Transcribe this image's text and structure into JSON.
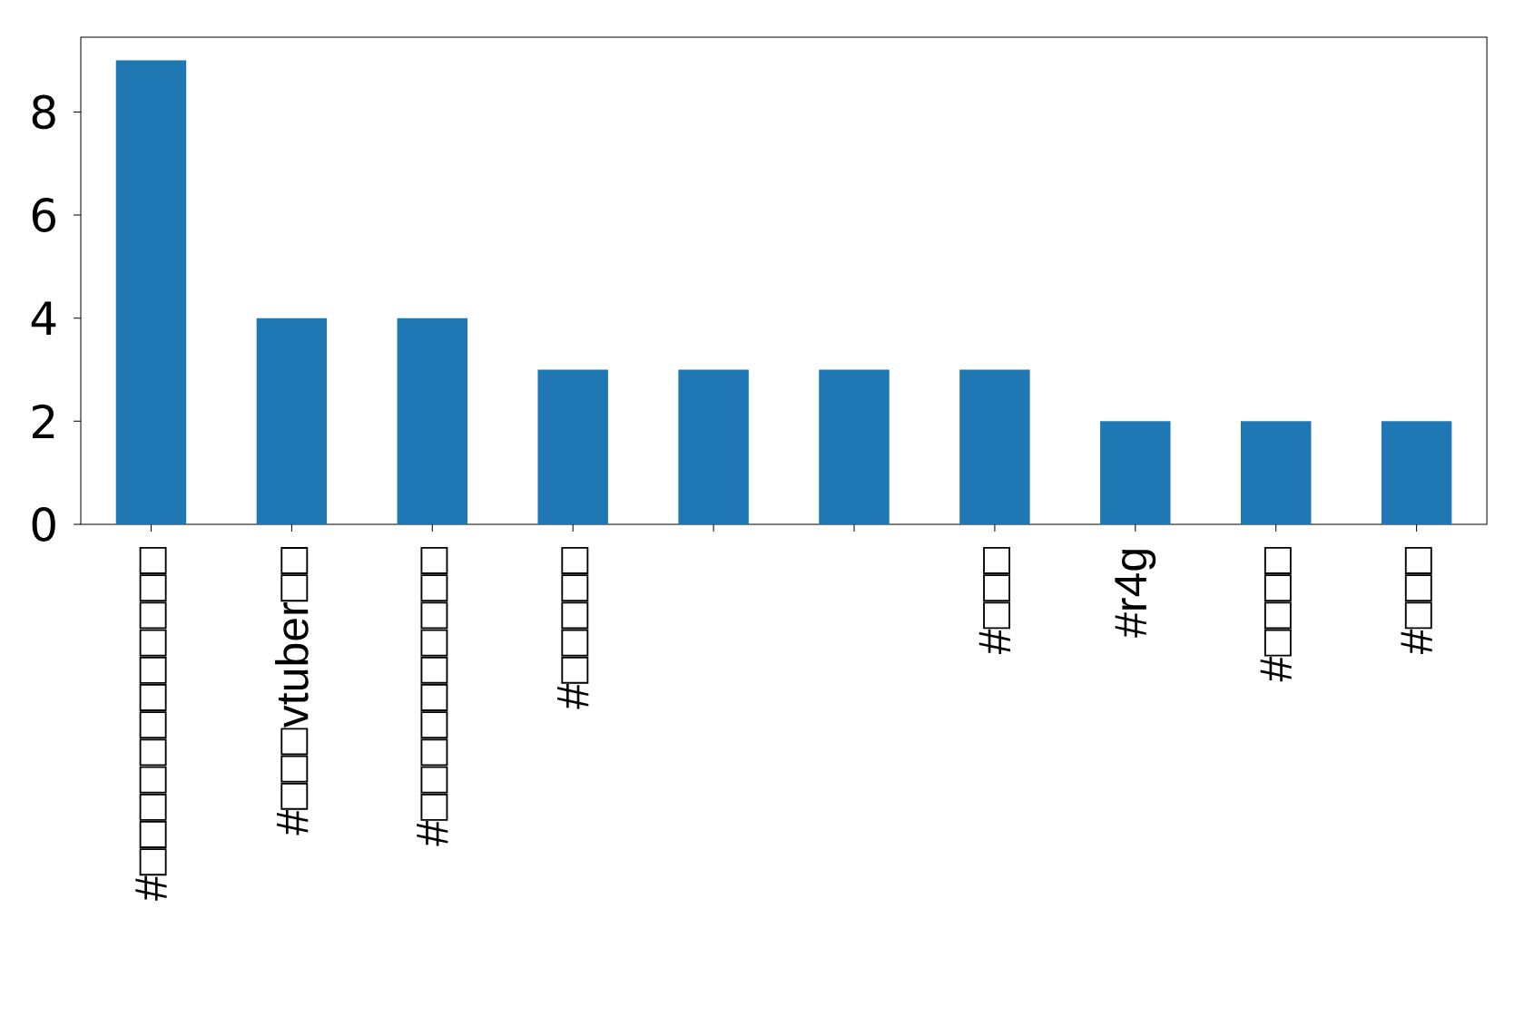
{
  "chart_data": {
    "type": "bar",
    "categories": [
      "#□□□□□□□□□□□□",
      "#□□□vtuber□□",
      "#□□□□□□□□□□",
      "#□□□□□",
      null,
      null,
      "#□□□",
      "#r4g",
      "#□□□□",
      "#□□□"
    ],
    "values": [
      9,
      4,
      4,
      3,
      3,
      3,
      3,
      2,
      2,
      2
    ],
    "color": "#1f77b4",
    "ylim": [
      0,
      9.45
    ],
    "yticks": [
      0,
      2,
      4,
      6,
      8
    ]
  }
}
